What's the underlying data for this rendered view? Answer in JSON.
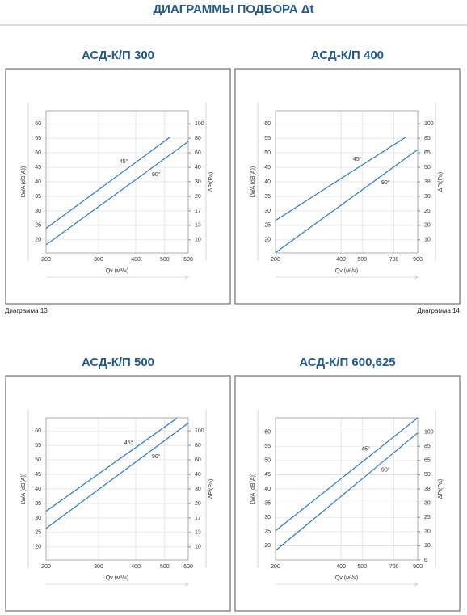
{
  "header": {
    "title": "ДИАГРАММЫ ПОДБОРА Δt"
  },
  "chart_data": [
    {
      "type": "line",
      "title": "АСД-К/П 300",
      "caption": "Диаграмма 13",
      "xlabel": "Qv (м³/ч)",
      "ylabel": "LWA (dB(A))",
      "y2label": "ΔPt(Pa)",
      "xscale": "log",
      "xlim": [
        200,
        600
      ],
      "xticks": [
        200,
        300,
        400,
        500,
        600
      ],
      "ylim": [
        15.5,
        64.5
      ],
      "yticks": [
        20,
        25,
        30,
        35,
        40,
        45,
        50,
        55,
        60
      ],
      "y2ticks": [
        100,
        80,
        60,
        40,
        30,
        20,
        17,
        13,
        10
      ],
      "grid": true,
      "series": [
        {
          "name": "45°",
          "color": "#2a78c2",
          "x": [
            200,
            520
          ],
          "values": [
            24,
            55.3
          ]
        },
        {
          "name": "90°",
          "color": "#2a78c2",
          "x": [
            200,
            600
          ],
          "values": [
            18.3,
            53.9
          ]
        }
      ]
    },
    {
      "type": "line",
      "title": "АСД-К/П 400",
      "caption": "Диаграмма 14",
      "xlabel": "Qv (м³/ч)",
      "ylabel": "LWA (dB(A))",
      "y2label": "ΔPt(Pa)",
      "xscale": "log",
      "xlim": [
        200,
        900
      ],
      "xticks": [
        200,
        400,
        500,
        700,
        900
      ],
      "ylim": [
        15.5,
        64.5
      ],
      "yticks": [
        20,
        25,
        30,
        35,
        40,
        45,
        50,
        55,
        60
      ],
      "y2ticks": [
        100,
        85,
        65,
        50,
        38,
        30,
        25,
        20,
        10
      ],
      "grid": true,
      "series": [
        {
          "name": "45°",
          "color": "#2a78c2",
          "x": [
            200,
            790
          ],
          "values": [
            26.7,
            55.3
          ]
        },
        {
          "name": "90°",
          "color": "#2a78c2",
          "x": [
            200,
            900
          ],
          "values": [
            15.6,
            51.1
          ]
        }
      ]
    },
    {
      "type": "line",
      "title": "АСД-К/П 500",
      "xlabel": "Qv (м³/ч)",
      "ylabel": "LWA (dB(A))",
      "y2label": "ΔPt(Pa)",
      "xscale": "log",
      "xlim": [
        200,
        600
      ],
      "xticks": [
        200,
        300,
        400,
        500,
        600
      ],
      "ylim": [
        15.5,
        64.5
      ],
      "yticks": [
        20,
        25,
        30,
        35,
        40,
        45,
        50,
        55,
        60
      ],
      "y2ticks": [
        100,
        80,
        60,
        40,
        30,
        20,
        17,
        13,
        10
      ],
      "grid": true,
      "series": [
        {
          "name": "45°",
          "color": "#2a78c2",
          "x": [
            200,
            550
          ],
          "values": [
            32.3,
            64.4
          ]
        },
        {
          "name": "90°",
          "color": "#2a78c2",
          "x": [
            200,
            600
          ],
          "values": [
            26.4,
            62.7
          ]
        }
      ]
    },
    {
      "type": "line",
      "title": "АСД-К/П 600,625",
      "xlabel": "Qv (м³/ч)",
      "ylabel": "LWA (dB(A))",
      "y2label": "ΔPt(Pa)",
      "xscale": "log",
      "xlim": [
        200,
        900
      ],
      "xticks": [
        200,
        400,
        500,
        700,
        900
      ],
      "ylim": [
        15,
        65
      ],
      "yticks": [
        20,
        25,
        30,
        35,
        40,
        45,
        50,
        55,
        60
      ],
      "y2ticks": [
        100,
        85,
        65,
        50,
        38,
        30,
        25,
        20,
        10,
        6
      ],
      "grid": true,
      "series": [
        {
          "name": "45°",
          "color": "#2a78c2",
          "x": [
            200,
            900
          ],
          "values": [
            25.3,
            65
          ]
        },
        {
          "name": "90°",
          "color": "#2a78c2",
          "x": [
            200,
            900
          ],
          "values": [
            18.3,
            59.7
          ]
        }
      ]
    }
  ]
}
